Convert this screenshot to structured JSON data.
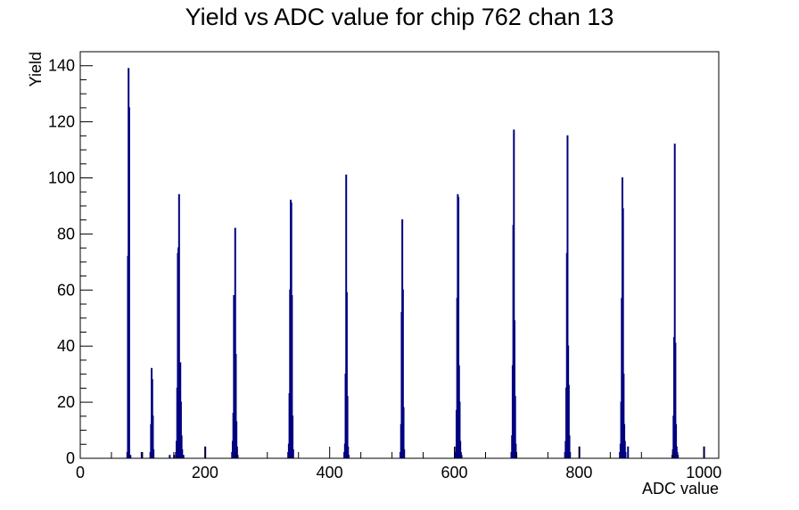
{
  "chart_data": {
    "type": "bar",
    "title": "Yield vs ADC value for chip 762 chan 13",
    "xlabel": "ADC value",
    "ylabel": "Yield",
    "xlim": [
      0,
      1024
    ],
    "ylim": [
      0,
      145
    ],
    "x_ticks": [
      0,
      200,
      400,
      600,
      800,
      1000
    ],
    "y_ticks": [
      0,
      20,
      40,
      60,
      80,
      100,
      120,
      140
    ],
    "grid": false,
    "legend": "none",
    "line_color": "#000080",
    "x": [
      75,
      76,
      77,
      78,
      80,
      98,
      112,
      113,
      114,
      115,
      116,
      117,
      143,
      150,
      153,
      154,
      155,
      156,
      157,
      158,
      159,
      160,
      161,
      162,
      163,
      164,
      165,
      200,
      243,
      244,
      245,
      246,
      247,
      248,
      249,
      250,
      251,
      252,
      333,
      334,
      335,
      336,
      337,
      338,
      339,
      340,
      341,
      423,
      424,
      425,
      426,
      427,
      428,
      429,
      430,
      513,
      514,
      515,
      516,
      517,
      518,
      519,
      601,
      602,
      603,
      604,
      605,
      606,
      607,
      608,
      609,
      610,
      611,
      691,
      692,
      693,
      694,
      695,
      696,
      697,
      698,
      699,
      777,
      778,
      779,
      780,
      781,
      782,
      783,
      784,
      785,
      800,
      865,
      866,
      867,
      868,
      869,
      870,
      871,
      872,
      873,
      874,
      878,
      949,
      950,
      951,
      952,
      953,
      954,
      955,
      956,
      957,
      958,
      1000
    ],
    "values": [
      2,
      72,
      139,
      125,
      1,
      2,
      2,
      12,
      32,
      28,
      15,
      3,
      1,
      1,
      2,
      6,
      25,
      73,
      75,
      94,
      27,
      34,
      20,
      8,
      3,
      1,
      1,
      4,
      2,
      6,
      16,
      58,
      56,
      82,
      37,
      13,
      4,
      1,
      2,
      5,
      23,
      60,
      92,
      91,
      58,
      15,
      3,
      2,
      5,
      30,
      101,
      59,
      22,
      4,
      1,
      2,
      12,
      52,
      85,
      60,
      18,
      3,
      2,
      4,
      17,
      57,
      94,
      93,
      33,
      20,
      6,
      2,
      1,
      2,
      8,
      33,
      83,
      117,
      49,
      22,
      5,
      1,
      2,
      6,
      25,
      73,
      115,
      40,
      26,
      8,
      2,
      4,
      2,
      5,
      20,
      57,
      100,
      89,
      30,
      12,
      6,
      2,
      4,
      1,
      3,
      15,
      43,
      112,
      41,
      12,
      4,
      2,
      1,
      4
    ]
  }
}
